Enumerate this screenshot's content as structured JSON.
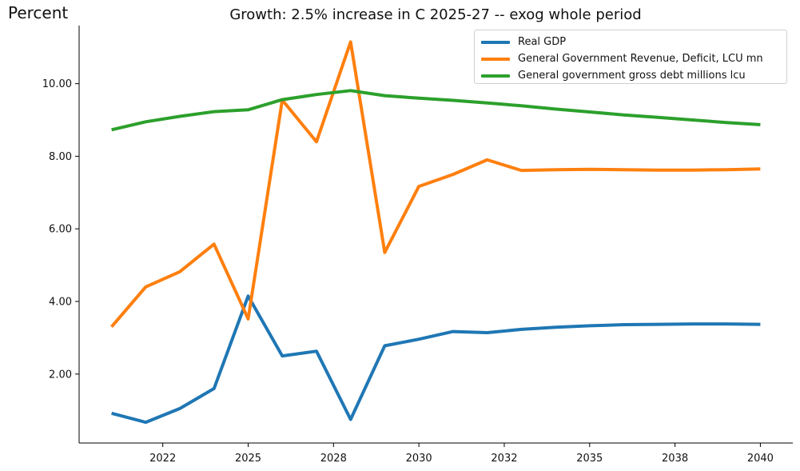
{
  "chart_data": {
    "type": "line",
    "title": "Growth: 2.5% increase in C 2025-27 -- exog whole period",
    "ylabel": "Percent",
    "xlabel": "",
    "x": [
      2021,
      2022,
      2023,
      2024,
      2025,
      2026,
      2027,
      2028,
      2029,
      2030,
      2031,
      2032,
      2033,
      2034,
      2035,
      2036,
      2037,
      2038,
      2039,
      2040
    ],
    "x_tick_labels": [
      {
        "x": 2022.5,
        "label": "2022"
      },
      {
        "x": 2025,
        "label": "2025"
      },
      {
        "x": 2027.5,
        "label": "2028"
      },
      {
        "x": 2030,
        "label": "2030"
      },
      {
        "x": 2032.5,
        "label": "2032"
      },
      {
        "x": 2035,
        "label": "2035"
      },
      {
        "x": 2037.5,
        "label": "2038"
      },
      {
        "x": 2040,
        "label": "2040"
      }
    ],
    "xlim": [
      2020.05,
      2040.95
    ],
    "yticks": [
      2.0,
      4.0,
      6.0,
      8.0,
      10.0
    ],
    "ytick_labels": [
      "2.00",
      "4.00",
      "6.00",
      "8.00",
      "10.00"
    ],
    "ylim": [
      0.1,
      11.6
    ],
    "grid": false,
    "legend_position": "top-right",
    "series": [
      {
        "name": "Real GDP",
        "color": "#1f77b4",
        "values": [
          0.92,
          0.67,
          1.05,
          1.6,
          4.15,
          2.5,
          2.63,
          0.75,
          2.78,
          2.96,
          3.17,
          3.14,
          3.23,
          3.29,
          3.33,
          3.36,
          3.37,
          3.38,
          3.38,
          3.37
        ]
      },
      {
        "name": "General Government Revenue, Deficit, LCU mn",
        "color": "#ff7f0e",
        "values": [
          3.3,
          4.4,
          4.82,
          5.58,
          3.52,
          9.55,
          8.4,
          11.15,
          5.35,
          7.17,
          7.5,
          7.9,
          7.61,
          7.63,
          7.64,
          7.63,
          7.62,
          7.62,
          7.63,
          7.65
        ]
      },
      {
        "name": "General government gross debt millions lcu",
        "color": "#2ca02c",
        "values": [
          8.73,
          8.95,
          9.1,
          9.23,
          9.28,
          9.56,
          9.7,
          9.81,
          9.67,
          9.6,
          9.54,
          9.47,
          9.39,
          9.3,
          9.22,
          9.14,
          9.07,
          9.0,
          8.93,
          8.87
        ]
      }
    ]
  }
}
